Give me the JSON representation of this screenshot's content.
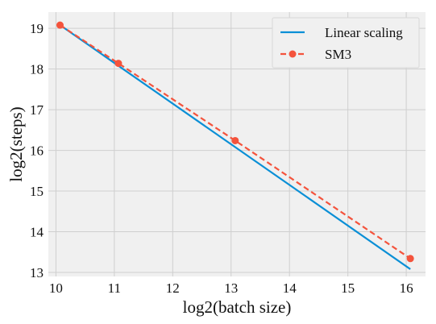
{
  "chart_data": {
    "type": "line",
    "xlabel": "log2(batch size)",
    "ylabel": "log2(steps)",
    "xlim": [
      9.87,
      16.33
    ],
    "ylim": [
      12.9,
      19.4
    ],
    "x_ticks": [
      10,
      11,
      12,
      13,
      14,
      15,
      16
    ],
    "y_ticks": [
      13,
      14,
      15,
      16,
      17,
      18,
      19
    ],
    "grid": true,
    "legend_position": "top-right",
    "series": [
      {
        "name": "Linear scaling",
        "color": "#0a8fd6",
        "style": "solid",
        "markers": false,
        "x": [
          10.07,
          16.07
        ],
        "y": [
          19.08,
          13.08
        ]
      },
      {
        "name": "SM3",
        "color": "#f4533c",
        "style": "dashed",
        "markers": true,
        "x": [
          10.07,
          11.07,
          13.07,
          16.07
        ],
        "y": [
          19.08,
          18.14,
          16.24,
          13.34
        ]
      }
    ]
  }
}
